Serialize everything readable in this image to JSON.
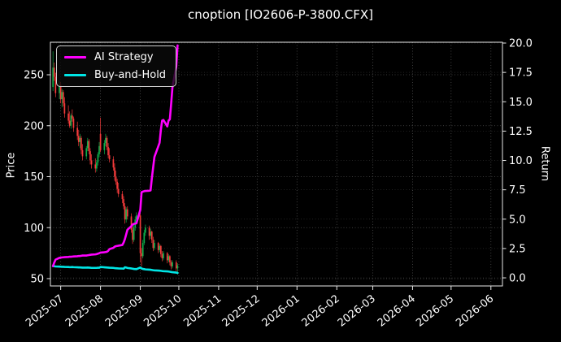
{
  "title": "cnoption [IO2606-P-3800.CFX]",
  "colors": {
    "background": "#000000",
    "text": "#ffffff",
    "spine": "#e8e8e8",
    "grid": "#9e9e9e",
    "candle_up": "#0fae4a",
    "candle_down": "#f53b3b",
    "ai_strategy": "#ff00ff",
    "buy_and_hold": "#00e6e6"
  },
  "chart_data": {
    "type": "candlestick+line",
    "title": "cnoption [IO2606-P-3800.CFX]",
    "grid": "both-axes, dotted",
    "legend_position": "upper-left",
    "left_axis": {
      "label": "Price",
      "ticks": [
        50,
        100,
        150,
        200,
        250
      ],
      "range": [
        42.8,
        281.9
      ]
    },
    "right_axis": {
      "label": "Return",
      "ticks": [
        0.0,
        2.5,
        5.0,
        7.5,
        10.0,
        12.5,
        15.0,
        17.5,
        20.0
      ],
      "range": [
        -0.69,
        20.07
      ]
    },
    "x_axis": {
      "range": [
        "2025-06-23",
        "2026-06-10"
      ],
      "ticks": [
        {
          "label": "2025-07",
          "date": "2025-07-01"
        },
        {
          "label": "2025-08",
          "date": "2025-08-01"
        },
        {
          "label": "2025-09",
          "date": "2025-09-01"
        },
        {
          "label": "2025-10",
          "date": "2025-10-01"
        },
        {
          "label": "2025-11",
          "date": "2025-11-01"
        },
        {
          "label": "2025-12",
          "date": "2025-12-01"
        },
        {
          "label": "2026-01",
          "date": "2026-01-01"
        },
        {
          "label": "2026-02",
          "date": "2026-02-01"
        },
        {
          "label": "2026-03",
          "date": "2026-03-01"
        },
        {
          "label": "2026-04",
          "date": "2026-04-01"
        },
        {
          "label": "2026-05",
          "date": "2026-05-01"
        },
        {
          "label": "2026-06",
          "date": "2026-06-01"
        }
      ]
    },
    "candles": {
      "axis": "left",
      "dates": [
        "2025-06-25",
        "2025-06-26",
        "2025-06-27",
        "2025-06-30",
        "2025-07-01",
        "2025-07-02",
        "2025-07-03",
        "2025-07-04",
        "2025-07-07",
        "2025-07-08",
        "2025-07-09",
        "2025-07-10",
        "2025-07-11",
        "2025-07-14",
        "2025-07-15",
        "2025-07-16",
        "2025-07-17",
        "2025-07-18",
        "2025-07-21",
        "2025-07-22",
        "2025-07-23",
        "2025-07-24",
        "2025-07-25",
        "2025-07-28",
        "2025-07-29",
        "2025-07-30",
        "2025-07-31",
        "2025-08-01",
        "2025-08-04",
        "2025-08-05",
        "2025-08-06",
        "2025-08-07",
        "2025-08-08",
        "2025-08-11",
        "2025-08-12",
        "2025-08-13",
        "2025-08-14",
        "2025-08-15",
        "2025-08-18",
        "2025-08-19",
        "2025-08-20",
        "2025-08-21",
        "2025-08-22",
        "2025-08-25",
        "2025-08-26",
        "2025-08-27",
        "2025-08-28",
        "2025-08-29",
        "2025-09-01",
        "2025-09-02",
        "2025-09-03",
        "2025-09-04",
        "2025-09-05",
        "2025-09-08",
        "2025-09-09",
        "2025-09-10",
        "2025-09-11",
        "2025-09-12",
        "2025-09-15",
        "2025-09-16",
        "2025-09-17",
        "2025-09-18",
        "2025-09-19",
        "2025-09-22",
        "2025-09-23",
        "2025-09-24",
        "2025-09-25",
        "2025-09-26",
        "2025-09-29",
        "2025-09-30"
      ],
      "open": [
        238,
        257,
        248,
        232,
        240,
        226,
        233,
        222,
        212,
        205,
        200,
        210,
        207,
        198,
        190,
        184,
        188,
        176,
        170,
        178,
        185,
        175,
        166,
        162,
        158,
        164,
        172,
        192,
        176,
        183,
        188,
        179,
        171,
        167,
        159,
        150,
        145,
        138,
        133,
        128,
        121,
        108,
        118,
        111,
        98,
        88,
        100,
        108,
        112,
        75,
        72,
        85,
        95,
        100,
        92,
        96,
        88,
        80,
        85,
        78,
        82,
        74,
        70,
        75,
        68,
        72,
        66,
        62,
        66,
        60
      ],
      "high": [
        273,
        262,
        252,
        244,
        243,
        236,
        235,
        228,
        220,
        214,
        212,
        216,
        209,
        204,
        196,
        192,
        190,
        182,
        180,
        188,
        187,
        178,
        172,
        168,
        166,
        174,
        184,
        208,
        186,
        192,
        190,
        183,
        178,
        170,
        163,
        156,
        148,
        144,
        136,
        131,
        124,
        120,
        121,
        114,
        102,
        103,
        111,
        115,
        114,
        80,
        88,
        98,
        103,
        102,
        99,
        97,
        91,
        88,
        86,
        84,
        83,
        77,
        77,
        76,
        74,
        73,
        68,
        68,
        68,
        65
      ],
      "low": [
        234,
        244,
        228,
        226,
        222,
        218,
        219,
        208,
        202,
        198,
        197,
        204,
        194,
        186,
        180,
        178,
        172,
        166,
        167,
        175,
        172,
        162,
        158,
        154,
        155,
        161,
        169,
        174,
        172,
        180,
        176,
        168,
        164,
        156,
        146,
        142,
        134,
        130,
        124,
        118,
        104,
        105,
        108,
        95,
        84,
        86,
        97,
        105,
        66,
        62,
        70,
        83,
        92,
        88,
        89,
        85,
        77,
        78,
        75,
        76,
        71,
        67,
        68,
        65,
        66,
        63,
        59,
        60,
        57,
        54
      ],
      "close": [
        257,
        248,
        232,
        240,
        226,
        233,
        222,
        212,
        205,
        200,
        210,
        207,
        198,
        190,
        184,
        188,
        176,
        170,
        178,
        185,
        175,
        166,
        162,
        158,
        164,
        172,
        180,
        176,
        183,
        188,
        179,
        171,
        167,
        159,
        150,
        145,
        138,
        133,
        128,
        121,
        108,
        118,
        111,
        98,
        88,
        100,
        108,
        112,
        75,
        72,
        85,
        95,
        100,
        92,
        96,
        88,
        80,
        85,
        78,
        82,
        74,
        70,
        75,
        68,
        72,
        66,
        62,
        66,
        60,
        63
      ]
    },
    "series": [
      {
        "name": "AI Strategy",
        "color": "#ff00ff",
        "axis": "right",
        "values": [
          1.0,
          1.3,
          1.55,
          1.7,
          1.72,
          1.74,
          1.75,
          1.76,
          1.78,
          1.8,
          1.8,
          1.81,
          1.82,
          1.84,
          1.86,
          1.86,
          1.88,
          1.9,
          1.9,
          1.92,
          1.94,
          1.96,
          1.98,
          2.0,
          2.02,
          2.06,
          2.1,
          2.15,
          2.18,
          2.2,
          2.22,
          2.3,
          2.45,
          2.55,
          2.65,
          2.7,
          2.72,
          2.74,
          2.8,
          3.0,
          3.3,
          3.7,
          4.1,
          4.4,
          4.55,
          4.6,
          4.62,
          4.65,
          5.8,
          7.3,
          7.35,
          7.38,
          7.4,
          7.42,
          7.45,
          8.5,
          9.4,
          10.3,
          11.2,
          11.5,
          12.6,
          13.4,
          13.45,
          12.9,
          13.4,
          13.5,
          14.8,
          16.2,
          18.0,
          19.8
        ]
      },
      {
        "name": "Buy-and-Hold",
        "color": "#00e6e6",
        "axis": "right",
        "values": [
          1.0,
          0.99,
          0.97,
          0.96,
          0.95,
          0.94,
          0.94,
          0.93,
          0.92,
          0.91,
          0.91,
          0.92,
          0.91,
          0.9,
          0.89,
          0.89,
          0.88,
          0.87,
          0.87,
          0.88,
          0.87,
          0.86,
          0.85,
          0.85,
          0.85,
          0.86,
          0.86,
          0.92,
          0.9,
          0.89,
          0.88,
          0.87,
          0.86,
          0.85,
          0.83,
          0.82,
          0.81,
          0.8,
          0.79,
          0.78,
          0.9,
          0.88,
          0.84,
          0.8,
          0.78,
          0.76,
          0.75,
          0.74,
          0.88,
          0.8,
          0.76,
          0.74,
          0.72,
          0.7,
          0.69,
          0.67,
          0.65,
          0.64,
          0.62,
          0.61,
          0.6,
          0.58,
          0.57,
          0.55,
          0.54,
          0.52,
          0.5,
          0.48,
          0.45,
          0.42
        ]
      }
    ]
  }
}
